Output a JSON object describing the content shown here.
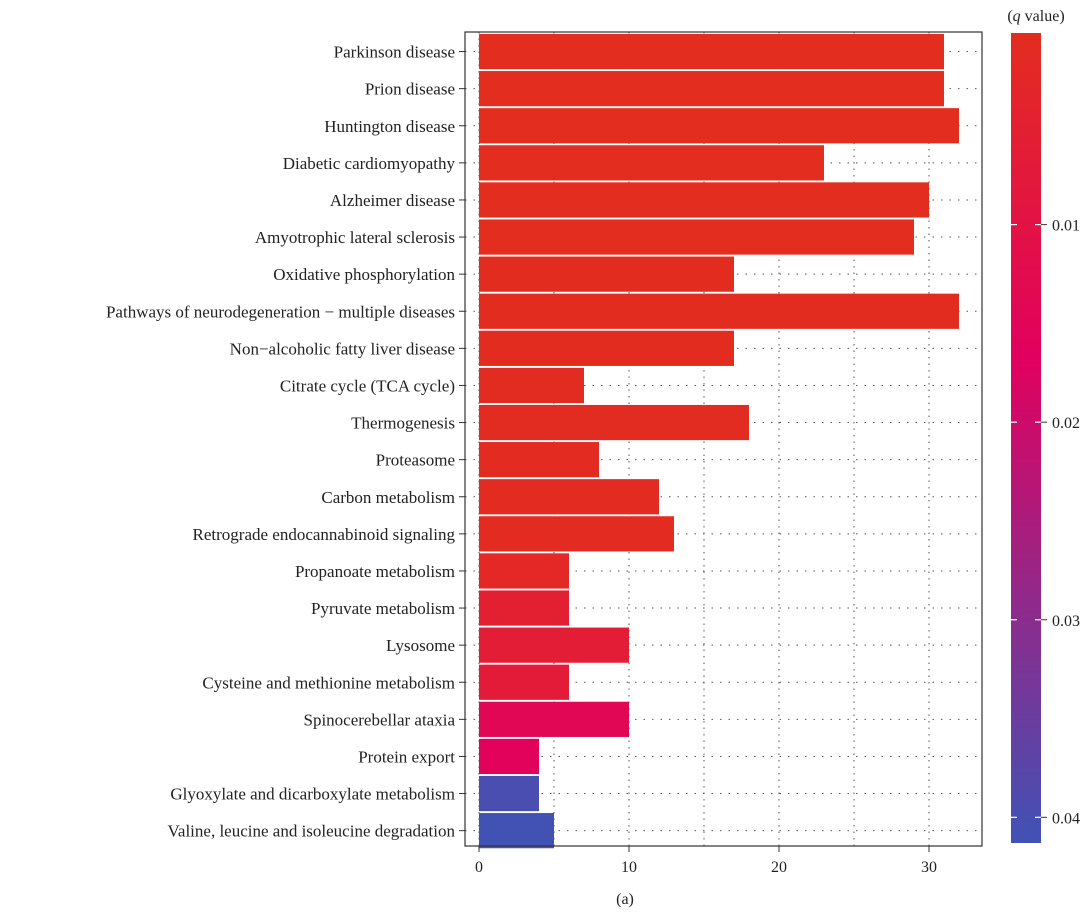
{
  "chart_data": {
    "type": "bar",
    "orientation": "horizontal",
    "panel_label": "(a)",
    "categories": [
      "Parkinson disease",
      "Prion disease",
      "Huntington disease",
      "Diabetic cardiomyopathy",
      "Alzheimer disease",
      "Amyotrophic lateral sclerosis",
      "Oxidative phosphorylation",
      "Pathways of neurodegeneration − multiple diseases",
      "Non−alcoholic fatty liver disease",
      "Citrate cycle (TCA cycle)",
      "Thermogenesis",
      "Proteasome",
      "Carbon metabolism",
      "Retrograde endocannabinoid signaling",
      "Propanoate metabolism",
      "Pyruvate metabolism",
      "Lysosome",
      "Cysteine and methionine metabolism",
      "Spinocerebellar ataxia",
      "Protein export",
      "Glyoxylate and dicarboxylate metabolism",
      "Valine, leucine and isoleucine degradation"
    ],
    "values": [
      31,
      31,
      32,
      23,
      30,
      29,
      17,
      32,
      17,
      7,
      18,
      8,
      12,
      13,
      6,
      6,
      10,
      6,
      10,
      4,
      4,
      5
    ],
    "q_values": [
      0.0003,
      0.0003,
      0.0003,
      0.0004,
      0.0004,
      0.0004,
      0.0005,
      0.0005,
      0.0006,
      0.0008,
      0.0008,
      0.001,
      0.001,
      0.001,
      0.002,
      0.005,
      0.006,
      0.007,
      0.014,
      0.016,
      0.04,
      0.041
    ],
    "xlim": [
      0,
      33.5
    ],
    "xticks": [
      "0",
      "10",
      "20",
      "30"
    ],
    "grid": true,
    "legend": {
      "title": "(q value)",
      "placement": "right",
      "ticks": [
        "0.01",
        "0.02",
        "0.03",
        "0.04"
      ],
      "range": [
        0.0003,
        0.0413
      ],
      "color_low": "#e32d1f",
      "color_mid": "#e2005e",
      "color_high": "#4052b5"
    }
  }
}
